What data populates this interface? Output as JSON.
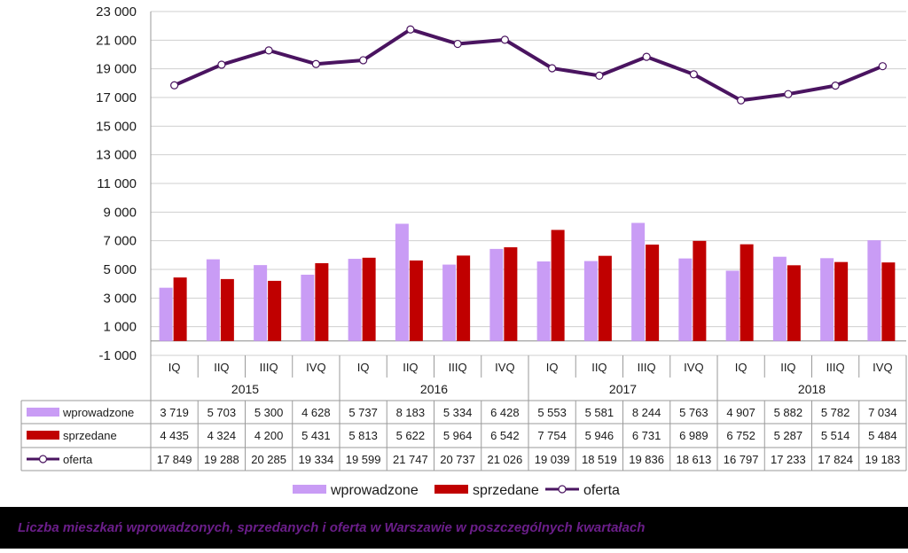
{
  "chart_data": {
    "type": "bar",
    "title": "",
    "xlabel": "",
    "ylabel": "",
    "ylim": [
      -1000,
      23000
    ],
    "yticks": [
      -1000,
      1000,
      3000,
      5000,
      7000,
      9000,
      11000,
      13000,
      15000,
      17000,
      19000,
      21000,
      23000
    ],
    "ytick_labels": [
      "-1 000",
      "1 000",
      "3 000",
      "5 000",
      "7 000",
      "9 000",
      "11 000",
      "13 000",
      "15 000",
      "17 000",
      "19 000",
      "21 000",
      "23 000"
    ],
    "grid": true,
    "legend_position": "bottom",
    "years": [
      "2015",
      "2016",
      "2017",
      "2018"
    ],
    "categories": [
      "IQ",
      "IIQ",
      "IIIQ",
      "IVQ",
      "IQ",
      "IIQ",
      "IIIQ",
      "IVQ",
      "IQ",
      "IIQ",
      "IIIQ",
      "IVQ",
      "IQ",
      "IIQ",
      "IIIQ",
      "IVQ"
    ],
    "series": [
      {
        "name": "wprowadzone",
        "type": "bar",
        "color": "#c99cf5",
        "values": [
          3719,
          5703,
          5300,
          4628,
          5737,
          8183,
          5334,
          6428,
          5553,
          5581,
          8244,
          5763,
          4907,
          5882,
          5782,
          7034
        ],
        "labels": [
          "3 719",
          "5 703",
          "5 300",
          "4 628",
          "5 737",
          "8 183",
          "5 334",
          "6 428",
          "5 553",
          "5 581",
          "8 244",
          "5 763",
          "4 907",
          "5 882",
          "5 782",
          "7 034"
        ]
      },
      {
        "name": "sprzedane",
        "type": "bar",
        "color": "#c00000",
        "values": [
          4435,
          4324,
          4200,
          5431,
          5813,
          5622,
          5964,
          6542,
          7754,
          5946,
          6731,
          6989,
          6752,
          5287,
          5514,
          5484
        ],
        "labels": [
          "4 435",
          "4 324",
          "4 200",
          "5 431",
          "5 813",
          "5 622",
          "5 964",
          "6 542",
          "7 754",
          "5 946",
          "6 731",
          "6 989",
          "6 752",
          "5 287",
          "5 514",
          "5 484"
        ]
      },
      {
        "name": "oferta",
        "type": "line",
        "color": "#4a1460",
        "values": [
          17849,
          19288,
          20285,
          19334,
          19599,
          21747,
          20737,
          21026,
          19039,
          18519,
          19836,
          18613,
          16797,
          17233,
          17824,
          19183
        ],
        "labels": [
          "17 849",
          "19 288",
          "20 285",
          "19 334",
          "19 599",
          "21 747",
          "20 737",
          "21 026",
          "19 039",
          "18 519",
          "19 836",
          "18 613",
          "16 797",
          "17 233",
          "17 824",
          "19 183"
        ]
      }
    ]
  },
  "footer": {
    "text": "Liczba mieszkań wprowadzonych, sprzedanych i oferta w Warszawie w poszczególnych kwartałach",
    "background": "#000000",
    "color": "#6b1e8a"
  }
}
